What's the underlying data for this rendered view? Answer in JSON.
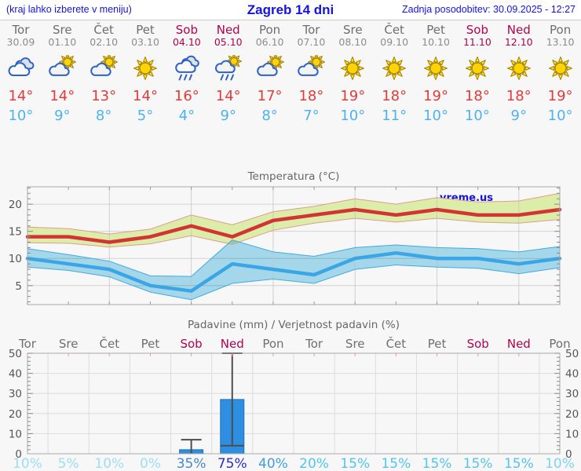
{
  "header": {
    "hint": "(kraj lahko izberete v meniju)",
    "title": "Zagreb 14 dni",
    "updated": "Zadnja posodobitev: 30.09.2025 - 12:27"
  },
  "colors": {
    "accent_blue": "#1414e0",
    "weekend": "#b3004e",
    "weekday_gray": "#6e6e6e",
    "tmax_red": "#e23b3b",
    "tmin_blue": "#4fb2f0",
    "bar_blue": "#2e8fe2"
  },
  "forecast_days": [
    {
      "name": "Tor",
      "date": "30.09",
      "icon": "cloudy-icon",
      "tmax": "14°",
      "tmin": "10°",
      "weekend": false
    },
    {
      "name": "Sre",
      "date": "01.10",
      "icon": "partly-cloudy-icon",
      "tmax": "14°",
      "tmin": "9°",
      "weekend": false
    },
    {
      "name": "Čet",
      "date": "02.10",
      "icon": "partly-cloudy-icon",
      "tmax": "13°",
      "tmin": "8°",
      "weekend": false
    },
    {
      "name": "Pet",
      "date": "03.10",
      "icon": "sunny-icon",
      "tmax": "14°",
      "tmin": "5°",
      "weekend": false
    },
    {
      "name": "Sob",
      "date": "04.10",
      "icon": "rain-icon",
      "tmax": "16°",
      "tmin": "4°",
      "weekend": true
    },
    {
      "name": "Ned",
      "date": "05.10",
      "icon": "sun-rain-icon",
      "tmax": "14°",
      "tmin": "9°",
      "weekend": true
    },
    {
      "name": "Pon",
      "date": "06.10",
      "icon": "partly-cloudy-icon",
      "tmax": "17°",
      "tmin": "8°",
      "weekend": false
    },
    {
      "name": "Tor",
      "date": "07.10",
      "icon": "partly-cloudy-icon",
      "tmax": "18°",
      "tmin": "7°",
      "weekend": false
    },
    {
      "name": "Sre",
      "date": "08.10",
      "icon": "sunny-icon",
      "tmax": "19°",
      "tmin": "10°",
      "weekend": false
    },
    {
      "name": "Čet",
      "date": "09.10",
      "icon": "sunny-icon",
      "tmax": "18°",
      "tmin": "11°",
      "weekend": false
    },
    {
      "name": "Pet",
      "date": "10.10",
      "icon": "sunny-icon",
      "tmax": "19°",
      "tmin": "10°",
      "weekend": false
    },
    {
      "name": "Sob",
      "date": "11.10",
      "icon": "sunny-icon",
      "tmax": "18°",
      "tmin": "10°",
      "weekend": true
    },
    {
      "name": "Ned",
      "date": "12.10",
      "icon": "sunny-icon",
      "tmax": "18°",
      "tmin": "9°",
      "weekend": true
    },
    {
      "name": "Pon",
      "date": "13.10",
      "icon": "sunny-icon",
      "tmax": "19°",
      "tmin": "10°",
      "weekend": false
    }
  ],
  "chart_data": [
    {
      "type": "line",
      "title": "Temperatura (°C)",
      "watermark": "vreme.us",
      "x_labels": [
        "Tor",
        "Sre",
        "Čet",
        "Pet",
        "Sob",
        "Ned",
        "Pon",
        "Tor",
        "Sre",
        "Čet",
        "Pet",
        "Sob",
        "Ned",
        "Pon"
      ],
      "ylim": [
        1.5,
        23.2
      ],
      "yticks": [
        5,
        10,
        15,
        20
      ],
      "grid": true,
      "series": [
        {
          "name": "max temperature",
          "color": "#d23434",
          "band_fill": "#dcedaa",
          "band_edge": "#e39b8b",
          "values": [
            14,
            14,
            13,
            14,
            16,
            14,
            17,
            18,
            19,
            18,
            19,
            18,
            18,
            19
          ],
          "band_hi": [
            15.8,
            15.5,
            14.5,
            15.4,
            18.0,
            16.2,
            18.6,
            19.6,
            21.0,
            20.0,
            21.2,
            20.4,
            20.6,
            22.0
          ],
          "band_lo": [
            12.9,
            12.8,
            12.1,
            12.7,
            14.2,
            12.6,
            15.2,
            16.5,
            17.4,
            16.7,
            17.4,
            16.7,
            16.5,
            17.2
          ]
        },
        {
          "name": "min temperature",
          "color": "#3ba6e6",
          "band_fill": "#a9def1",
          "band_edge": "#44aade",
          "values": [
            10,
            9,
            8,
            5,
            4,
            9,
            8,
            7,
            10,
            11,
            10,
            10,
            9,
            10
          ],
          "band_hi": [
            11.8,
            10.7,
            9.5,
            6.8,
            6.7,
            13.4,
            11.2,
            10.4,
            12.0,
            12.5,
            12.0,
            11.8,
            11.2,
            12.2
          ],
          "band_lo": [
            8.4,
            7.8,
            6.6,
            3.8,
            2.4,
            5.4,
            6.2,
            5.4,
            8.0,
            8.8,
            8.4,
            8.2,
            7.2,
            8.3
          ]
        }
      ]
    },
    {
      "type": "bar",
      "title": "Padavine (mm) / Verjetnost padavin (%)",
      "categories": [
        "Tor",
        "Sre",
        "Čet",
        "Pet",
        "Sob",
        "Ned",
        "Pon",
        "Tor",
        "Sre",
        "Čet",
        "Pet",
        "Sob",
        "Ned",
        "Pon"
      ],
      "weekend": [
        false,
        false,
        false,
        false,
        true,
        true,
        false,
        false,
        false,
        false,
        false,
        true,
        true,
        false
      ],
      "values_mm": [
        0,
        0,
        0,
        0,
        2,
        27,
        0,
        0,
        0,
        0,
        0,
        0,
        0,
        0
      ],
      "whisker_lo": [
        null,
        null,
        null,
        null,
        0,
        4,
        null,
        null,
        null,
        null,
        null,
        null,
        null,
        null
      ],
      "whisker_hi": [
        null,
        null,
        null,
        null,
        7,
        50,
        null,
        null,
        null,
        null,
        null,
        null,
        null,
        null
      ],
      "probabilities": [
        "10%",
        "5%",
        "10%",
        "0%",
        "35%",
        "75%",
        "40%",
        "20%",
        "15%",
        "15%",
        "15%",
        "15%",
        "15%",
        "10%"
      ],
      "prob_colors": [
        "#9edef2",
        "#9edef2",
        "#9edef2",
        "#9edef2",
        "#4a86d0",
        "#2a2fc2",
        "#3f9fe0",
        "#54c4ee",
        "#54c4ee",
        "#54c4ee",
        "#54c4ee",
        "#54c4ee",
        "#54c4ee",
        "#7fd4f0"
      ],
      "ylim": [
        0,
        52
      ],
      "yticks": [
        0,
        10,
        20,
        30,
        40,
        50
      ],
      "bar_color": "#2e8fe2"
    }
  ]
}
